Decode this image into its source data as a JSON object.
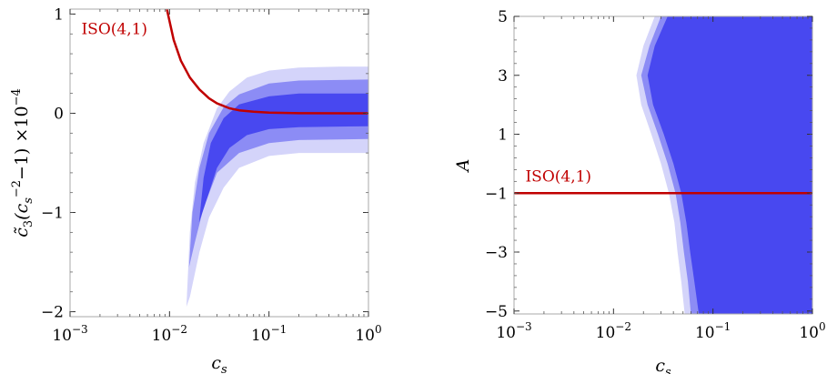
{
  "chart_data": [
    {
      "type": "area",
      "title": "",
      "xlabel": "c_s",
      "ylabel": "c̃₃(c_s⁻² − 1) × 10⁻⁴",
      "x_scale": "log",
      "xlim": [
        0.001,
        1
      ],
      "ylim": [
        -2.05,
        1.05
      ],
      "x_ticks": [
        {
          "value": 0.001,
          "base": "10",
          "exp": "−3"
        },
        {
          "value": 0.01,
          "base": "10",
          "exp": "−2"
        },
        {
          "value": 0.1,
          "base": "10",
          "exp": "−1"
        },
        {
          "value": 1,
          "base": "10",
          "exp": "0"
        }
      ],
      "y_ticks": [
        {
          "value": -2,
          "label": "−2"
        },
        {
          "value": -1,
          "label": "−1"
        },
        {
          "value": 0,
          "label": "0"
        },
        {
          "value": 1,
          "label": "1"
        }
      ],
      "regions": [
        {
          "level": "outer",
          "color": "#d4d4fa",
          "upper": [
            [
              0.0148,
              -1.95
            ],
            [
              0.016,
              -1.2
            ],
            [
              0.018,
              -0.7
            ],
            [
              0.022,
              -0.3
            ],
            [
              0.03,
              0.05
            ],
            [
              0.04,
              0.22
            ],
            [
              0.06,
              0.36
            ],
            [
              0.1,
              0.43
            ],
            [
              0.2,
              0.46
            ],
            [
              0.5,
              0.47
            ],
            [
              1,
              0.47
            ]
          ],
          "lower": [
            [
              0.0148,
              -1.95
            ],
            [
              0.016,
              -1.85
            ],
            [
              0.02,
              -1.4
            ],
            [
              0.025,
              -1.05
            ],
            [
              0.035,
              -0.75
            ],
            [
              0.05,
              -0.55
            ],
            [
              0.1,
              -0.43
            ],
            [
              0.2,
              -0.4
            ],
            [
              0.5,
              -0.4
            ],
            [
              1,
              -0.4
            ]
          ]
        },
        {
          "level": "middle",
          "color": "#8c8cf5",
          "upper": [
            [
              0.0157,
              -1.55
            ],
            [
              0.017,
              -1.0
            ],
            [
              0.02,
              -0.55
            ],
            [
              0.025,
              -0.2
            ],
            [
              0.035,
              0.06
            ],
            [
              0.05,
              0.19
            ],
            [
              0.1,
              0.3
            ],
            [
              0.2,
              0.33
            ],
            [
              1,
              0.34
            ]
          ],
          "lower": [
            [
              0.0157,
              -1.55
            ],
            [
              0.018,
              -1.3
            ],
            [
              0.022,
              -0.95
            ],
            [
              0.03,
              -0.6
            ],
            [
              0.05,
              -0.4
            ],
            [
              0.1,
              -0.3
            ],
            [
              0.2,
              -0.27
            ],
            [
              1,
              -0.26
            ]
          ]
        },
        {
          "level": "inner",
          "color": "#4848f0",
          "upper": [
            [
              0.0198,
              -1.1
            ],
            [
              0.022,
              -0.65
            ],
            [
              0.026,
              -0.3
            ],
            [
              0.035,
              -0.05
            ],
            [
              0.05,
              0.09
            ],
            [
              0.1,
              0.17
            ],
            [
              0.2,
              0.2
            ],
            [
              1,
              0.2
            ]
          ],
          "lower": [
            [
              0.0198,
              -1.1
            ],
            [
              0.024,
              -0.85
            ],
            [
              0.03,
              -0.55
            ],
            [
              0.04,
              -0.35
            ],
            [
              0.06,
              -0.22
            ],
            [
              0.1,
              -0.16
            ],
            [
              0.2,
              -0.14
            ],
            [
              1,
              -0.13
            ]
          ]
        }
      ],
      "curve": {
        "name": "ISO(4,1)",
        "color": "#c00000",
        "points": [
          [
            0.0094,
            1.05
          ],
          [
            0.011,
            0.74
          ],
          [
            0.013,
            0.53
          ],
          [
            0.016,
            0.36
          ],
          [
            0.02,
            0.24
          ],
          [
            0.025,
            0.15
          ],
          [
            0.03,
            0.1
          ],
          [
            0.04,
            0.05
          ],
          [
            0.05,
            0.03
          ],
          [
            0.07,
            0.015
          ],
          [
            0.1,
            0.006
          ],
          [
            0.2,
            0.001
          ],
          [
            1,
            0.0
          ]
        ]
      },
      "annotation": {
        "text": "ISO(4,1)",
        "x": 0.0013,
        "y": 0.8
      }
    },
    {
      "type": "area",
      "title": "",
      "xlabel": "c_s",
      "ylabel": "A",
      "x_scale": "log",
      "xlim": [
        0.001,
        1
      ],
      "ylim": [
        -5.1,
        5
      ],
      "x_ticks": [
        {
          "value": 0.001,
          "base": "10",
          "exp": "−3"
        },
        {
          "value": 0.01,
          "base": "10",
          "exp": "−2"
        },
        {
          "value": 0.1,
          "base": "10",
          "exp": "−1"
        },
        {
          "value": 1,
          "base": "10",
          "exp": "0"
        }
      ],
      "y_ticks": [
        {
          "value": 5,
          "label": "5"
        },
        {
          "value": 3,
          "label": "3"
        },
        {
          "value": 1,
          "label": "1"
        },
        {
          "value": -1,
          "label": "−1"
        },
        {
          "value": -3,
          "label": "−3"
        },
        {
          "value": -5,
          "label": "−5"
        }
      ],
      "regions": [
        {
          "level": "outer",
          "color": "#d4d4fa",
          "boundary": [
            [
              0.026,
              5
            ],
            [
              0.02,
              4
            ],
            [
              0.017,
              3
            ],
            [
              0.019,
              2
            ],
            [
              0.024,
              1
            ],
            [
              0.03,
              0
            ],
            [
              0.036,
              -1
            ],
            [
              0.041,
              -2
            ],
            [
              0.044,
              -3
            ],
            [
              0.048,
              -4
            ],
            [
              0.052,
              -5.1
            ]
          ]
        },
        {
          "level": "middle",
          "color": "#8c8cf5",
          "boundary": [
            [
              0.03,
              5
            ],
            [
              0.023,
              4
            ],
            [
              0.019,
              3
            ],
            [
              0.022,
              2
            ],
            [
              0.028,
              1
            ],
            [
              0.035,
              0
            ],
            [
              0.042,
              -1
            ],
            [
              0.047,
              -2
            ],
            [
              0.051,
              -3
            ],
            [
              0.056,
              -4
            ],
            [
              0.06,
              -5.1
            ]
          ]
        },
        {
          "level": "inner",
          "color": "#4848f0",
          "boundary": [
            [
              0.035,
              5
            ],
            [
              0.026,
              4
            ],
            [
              0.022,
              3
            ],
            [
              0.025,
              2
            ],
            [
              0.032,
              1
            ],
            [
              0.04,
              0
            ],
            [
              0.048,
              -1
            ],
            [
              0.054,
              -2
            ],
            [
              0.059,
              -3
            ],
            [
              0.065,
              -4
            ],
            [
              0.072,
              -5.1
            ]
          ]
        }
      ],
      "curve": {
        "name": "ISO(4,1)",
        "color": "#c00000",
        "points": [
          [
            0.001,
            -1
          ],
          [
            1,
            -1
          ]
        ]
      },
      "annotation": {
        "text": "ISO(4,1)",
        "x": 0.0013,
        "y": -0.6
      }
    }
  ]
}
